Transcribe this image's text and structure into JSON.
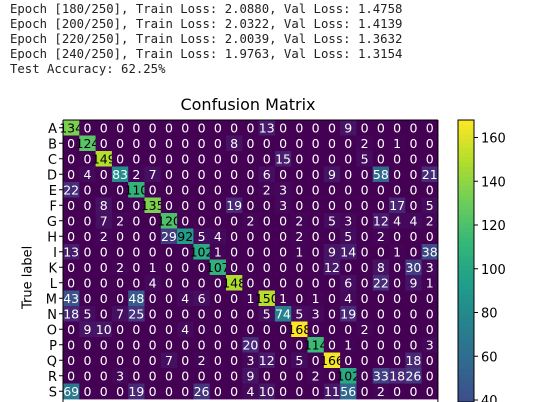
{
  "log_lines": [
    "Epoch [180/250], Train Loss: 2.0880, Val Loss: 1.4758",
    "Epoch [200/250], Train Loss: 2.0322, Val Loss: 1.4139",
    "Epoch [220/250], Train Loss: 2.0039, Val Loss: 1.3632",
    "Epoch [240/250], Train Loss: 1.9763, Val Loss: 1.3154",
    "Test Accuracy: 62.25%"
  ],
  "chart_data": {
    "type": "heatmap",
    "title": "Confusion Matrix",
    "ylabel": "True label",
    "xlabel": "",
    "row_labels": [
      "A",
      "B",
      "C",
      "D",
      "E",
      "F",
      "G",
      "H",
      "I",
      "K",
      "L",
      "M",
      "N",
      "O",
      "P",
      "Q",
      "R",
      "S"
    ],
    "colorbar": {
      "ticks": [
        40,
        60,
        80,
        100,
        120,
        140,
        160
      ],
      "range": [
        0,
        168
      ]
    },
    "matrix": [
      [
        134,
        0,
        0,
        0,
        0,
        0,
        0,
        0,
        0,
        0,
        0,
        0,
        13,
        0,
        0,
        0,
        0,
        9,
        0,
        0,
        0,
        0,
        0
      ],
      [
        0,
        124,
        0,
        0,
        0,
        0,
        0,
        0,
        0,
        0,
        8,
        0,
        0,
        0,
        0,
        0,
        0,
        0,
        2,
        0,
        1,
        0,
        0
      ],
      [
        0,
        0,
        149,
        0,
        0,
        0,
        0,
        0,
        0,
        0,
        0,
        0,
        0,
        15,
        0,
        0,
        0,
        0,
        5,
        0,
        0,
        0,
        0
      ],
      [
        0,
        4,
        0,
        83,
        2,
        7,
        0,
        0,
        0,
        0,
        0,
        0,
        6,
        0,
        0,
        0,
        9,
        0,
        0,
        58,
        0,
        0,
        21
      ],
      [
        22,
        0,
        0,
        0,
        110,
        0,
        0,
        0,
        0,
        0,
        0,
        0,
        2,
        3,
        0,
        0,
        0,
        0,
        0,
        0,
        0,
        0,
        0
      ],
      [
        0,
        0,
        8,
        0,
        0,
        135,
        0,
        0,
        0,
        0,
        19,
        0,
        0,
        3,
        0,
        0,
        0,
        0,
        0,
        0,
        17,
        0,
        5
      ],
      [
        0,
        0,
        7,
        2,
        0,
        0,
        120,
        0,
        0,
        0,
        0,
        2,
        0,
        0,
        2,
        0,
        5,
        3,
        0,
        12,
        4,
        4,
        2
      ],
      [
        0,
        0,
        2,
        0,
        0,
        0,
        29,
        92,
        5,
        4,
        0,
        0,
        0,
        0,
        2,
        0,
        0,
        5,
        0,
        2,
        0,
        0,
        0
      ],
      [
        13,
        0,
        0,
        0,
        0,
        0,
        0,
        0,
        102,
        1,
        0,
        0,
        0,
        0,
        1,
        0,
        9,
        14,
        0,
        0,
        1,
        0,
        38
      ],
      [
        0,
        0,
        0,
        2,
        0,
        1,
        0,
        0,
        0,
        107,
        0,
        0,
        0,
        0,
        0,
        0,
        12,
        0,
        0,
        8,
        0,
        30,
        3
      ],
      [
        0,
        0,
        0,
        0,
        0,
        4,
        0,
        0,
        0,
        0,
        148,
        0,
        0,
        0,
        0,
        0,
        0,
        6,
        0,
        22,
        0,
        9,
        1
      ],
      [
        43,
        0,
        0,
        0,
        48,
        0,
        0,
        4,
        6,
        0,
        0,
        1,
        150,
        1,
        0,
        1,
        0,
        4,
        0,
        0,
        0,
        0,
        0
      ],
      [
        18,
        5,
        0,
        7,
        25,
        0,
        0,
        0,
        0,
        0,
        0,
        0,
        5,
        74,
        5,
        3,
        0,
        19,
        0,
        0,
        0,
        0,
        0
      ],
      [
        0,
        9,
        10,
        0,
        0,
        0,
        0,
        4,
        0,
        0,
        0,
        0,
        0,
        0,
        168,
        0,
        0,
        0,
        2,
        0,
        0,
        0,
        0
      ],
      [
        0,
        0,
        0,
        0,
        0,
        0,
        0,
        0,
        0,
        0,
        0,
        20,
        0,
        0,
        0,
        114,
        0,
        1,
        0,
        0,
        0,
        0,
        3
      ],
      [
        0,
        0,
        0,
        0,
        0,
        0,
        7,
        0,
        2,
        0,
        0,
        3,
        12,
        0,
        5,
        0,
        166,
        0,
        0,
        0,
        0,
        18,
        0
      ],
      [
        0,
        0,
        0,
        3,
        0,
        0,
        0,
        0,
        0,
        0,
        0,
        9,
        0,
        0,
        0,
        2,
        0,
        102,
        0,
        33,
        18,
        26,
        0
      ],
      [
        69,
        0,
        0,
        0,
        19,
        0,
        0,
        0,
        26,
        0,
        0,
        4,
        10,
        0,
        0,
        0,
        11,
        56,
        0,
        2,
        0,
        0,
        0
      ]
    ]
  }
}
